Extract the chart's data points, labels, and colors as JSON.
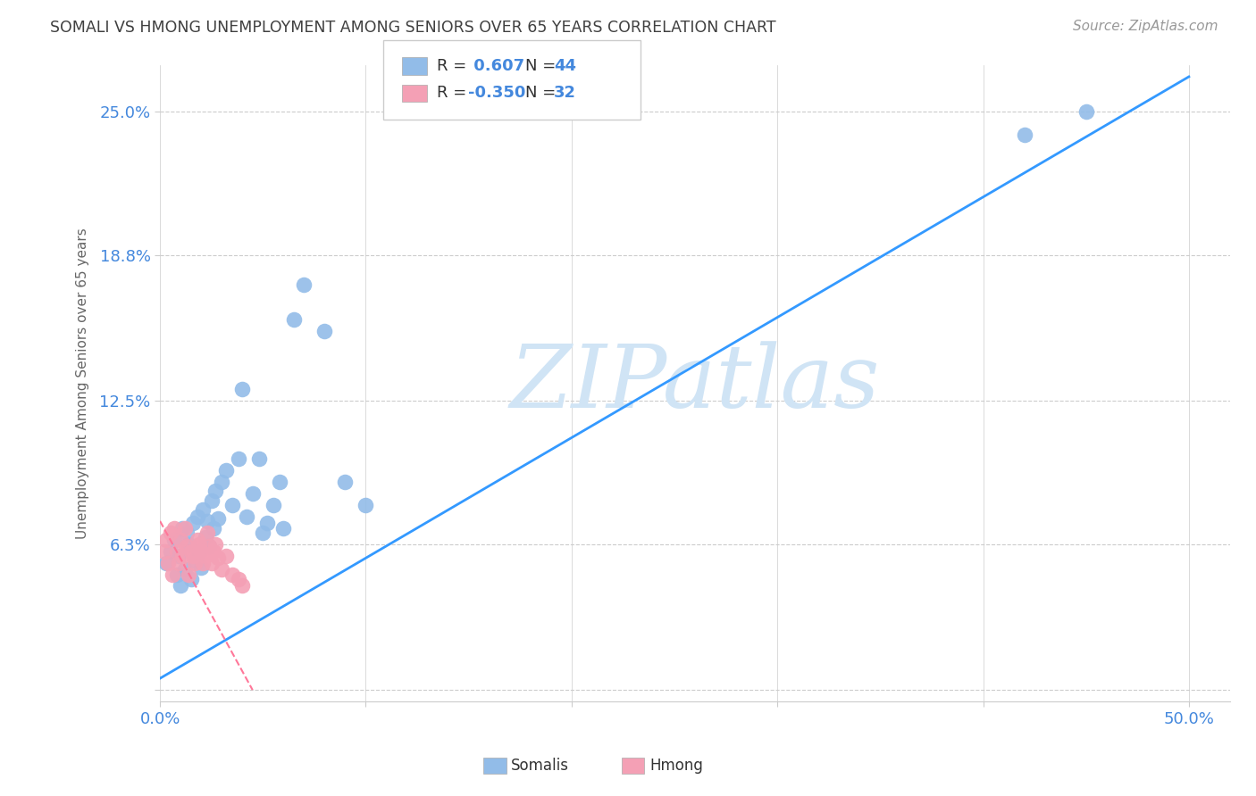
{
  "title": "SOMALI VS HMONG UNEMPLOYMENT AMONG SENIORS OVER 65 YEARS CORRELATION CHART",
  "source": "Source: ZipAtlas.com",
  "ylabel": "Unemployment Among Seniors over 65 years",
  "xlim": [
    0.0,
    0.52
  ],
  "ylim": [
    -0.005,
    0.27
  ],
  "r_somali": 0.607,
  "n_somali": 44,
  "r_hmong": -0.35,
  "n_hmong": 32,
  "somali_color": "#92bce8",
  "hmong_color": "#f4a0b5",
  "somali_line_color": "#3399ff",
  "hmong_line_color": "#ff7799",
  "grid_color": "#cccccc",
  "bg_color": "#ffffff",
  "title_color": "#404040",
  "axis_label_color": "#4488dd",
  "watermark_color": "#d0e4f5",
  "somali_x": [
    0.003,
    0.005,
    0.007,
    0.008,
    0.009,
    0.01,
    0.011,
    0.012,
    0.013,
    0.014,
    0.015,
    0.016,
    0.017,
    0.018,
    0.019,
    0.02,
    0.021,
    0.022,
    0.023,
    0.024,
    0.025,
    0.026,
    0.027,
    0.028,
    0.03,
    0.032,
    0.035,
    0.038,
    0.04,
    0.042,
    0.045,
    0.048,
    0.05,
    0.052,
    0.055,
    0.058,
    0.06,
    0.065,
    0.07,
    0.08,
    0.09,
    0.1,
    0.42,
    0.45
  ],
  "somali_y": [
    0.055,
    0.06,
    0.065,
    0.05,
    0.058,
    0.045,
    0.07,
    0.052,
    0.068,
    0.063,
    0.048,
    0.072,
    0.056,
    0.075,
    0.06,
    0.053,
    0.078,
    0.066,
    0.073,
    0.062,
    0.082,
    0.07,
    0.086,
    0.074,
    0.09,
    0.095,
    0.08,
    0.1,
    0.13,
    0.075,
    0.085,
    0.1,
    0.068,
    0.072,
    0.08,
    0.09,
    0.07,
    0.16,
    0.175,
    0.155,
    0.09,
    0.08,
    0.24,
    0.25
  ],
  "hmong_x": [
    0.002,
    0.003,
    0.004,
    0.005,
    0.006,
    0.007,
    0.008,
    0.009,
    0.01,
    0.011,
    0.012,
    0.013,
    0.014,
    0.015,
    0.016,
    0.017,
    0.018,
    0.019,
    0.02,
    0.021,
    0.022,
    0.023,
    0.024,
    0.025,
    0.026,
    0.027,
    0.028,
    0.03,
    0.032,
    0.035,
    0.038,
    0.04
  ],
  "hmong_y": [
    0.06,
    0.065,
    0.055,
    0.068,
    0.05,
    0.07,
    0.06,
    0.055,
    0.065,
    0.058,
    0.07,
    0.062,
    0.05,
    0.06,
    0.058,
    0.055,
    0.065,
    0.063,
    0.06,
    0.055,
    0.058,
    0.068,
    0.062,
    0.055,
    0.06,
    0.063,
    0.057,
    0.052,
    0.058,
    0.05,
    0.048,
    0.045
  ],
  "somali_line_x0": 0.0,
  "somali_line_y0": 0.005,
  "somali_line_x1": 0.5,
  "somali_line_y1": 0.265,
  "hmong_line_x0": 0.0,
  "hmong_line_y0": 0.073,
  "hmong_line_x1": 0.045,
  "hmong_line_y1": 0.0,
  "x_tick_positions": [
    0.0,
    0.1,
    0.2,
    0.3,
    0.4,
    0.5
  ],
  "x_tick_labels": [
    "0.0%",
    "",
    "",
    "",
    "",
    "50.0%"
  ],
  "y_tick_positions": [
    0.0,
    0.063,
    0.125,
    0.188,
    0.25
  ],
  "y_tick_labels": [
    "",
    "6.3%",
    "12.5%",
    "18.8%",
    "25.0%"
  ],
  "legend_label1": "R =  0.607   N = 44",
  "legend_label2": "R = -0.350   N = 32",
  "bottom_label1": "Somalis",
  "bottom_label2": "Hmong"
}
